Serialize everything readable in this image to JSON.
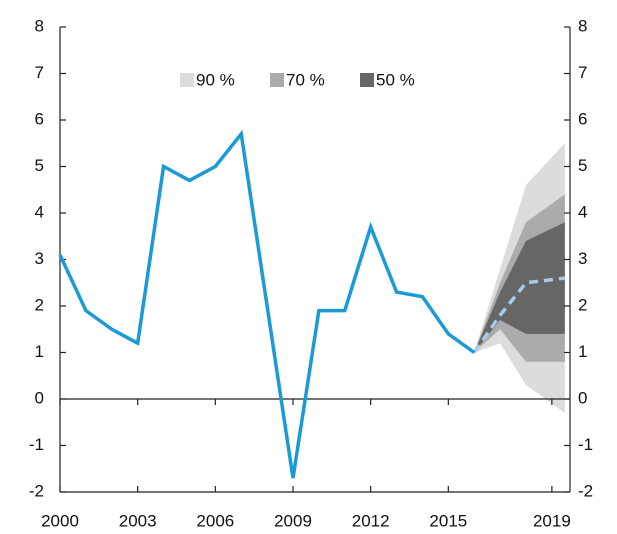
{
  "chart_data": {
    "type": "line",
    "x": [
      2000,
      2001,
      2002,
      2003,
      2004,
      2005,
      2006,
      2007,
      2008,
      2009,
      2010,
      2011,
      2012,
      2013,
      2014,
      2015,
      2016
    ],
    "values": [
      3.1,
      1.9,
      1.5,
      1.2,
      5.0,
      4.7,
      5.0,
      5.7,
      2.0,
      -1.7,
      1.9,
      1.9,
      3.7,
      2.3,
      2.2,
      1.4,
      1.0
    ],
    "color": "#1a9ad6",
    "forecast": {
      "x": [
        2016,
        2017,
        2018,
        2019.5
      ],
      "values": [
        1.0,
        1.8,
        2.5,
        2.6
      ],
      "color": "#a9c8ea"
    },
    "bands": [
      {
        "name": "90 %",
        "color": "#dcdcdc",
        "x": [
          2016,
          2017,
          2018,
          2019.5
        ],
        "lower": [
          1.0,
          1.2,
          0.3,
          -0.3
        ],
        "upper": [
          1.0,
          2.8,
          4.6,
          5.5
        ]
      },
      {
        "name": "70 %",
        "color": "#ababab",
        "x": [
          2016,
          2017,
          2018,
          2019.5
        ],
        "lower": [
          1.0,
          1.5,
          0.8,
          0.8
        ],
        "upper": [
          1.0,
          2.5,
          3.8,
          4.4
        ]
      },
      {
        "name": "50 %",
        "color": "#666666",
        "x": [
          2016,
          2017,
          2018,
          2019.5
        ],
        "lower": [
          1.0,
          1.7,
          1.4,
          1.4
        ],
        "upper": [
          1.0,
          2.3,
          3.4,
          3.8
        ]
      }
    ],
    "xlim": [
      2000,
      2019.7
    ],
    "xticks": [
      2000,
      2003,
      2006,
      2009,
      2012,
      2015,
      2019
    ],
    "ylim": [
      -2,
      8
    ],
    "yticks": [
      -2,
      -1,
      0,
      1,
      2,
      3,
      4,
      5,
      6,
      7,
      8
    ]
  }
}
